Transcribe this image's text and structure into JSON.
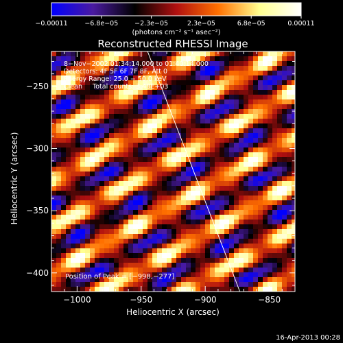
{
  "chart_data": {
    "type": "heatmap",
    "title": "Reconstructed RHESSI Image",
    "xlabel": "Heliocentric X (arcsec)",
    "ylabel": "Heliocentric Y (arcsec)",
    "xlim": [
      -1020,
      -830
    ],
    "ylim": [
      -415,
      -222
    ],
    "x_ticks": [
      -1000,
      -950,
      -900,
      -850
    ],
    "y_ticks": [
      -250,
      -300,
      -350,
      -400
    ],
    "x_tick_labels": [
      "−1000",
      "−950",
      "−900",
      "−850"
    ],
    "y_tick_labels": [
      "−250",
      "−300",
      "−350",
      "−400"
    ],
    "colorbar": {
      "min": -0.00011,
      "max": 0.00011,
      "tick_labels": [
        "−0.00011",
        "−6.8e−05",
        "−2.3e−05",
        "2.3e−05",
        "6.8e−05",
        "0.00011"
      ],
      "unit_label": "(photons cm⁻² s⁻¹ asec⁻²)",
      "colors": [
        "#0000ff",
        "#4a1aa0",
        "#000000",
        "#b01010",
        "#ff7000",
        "#ffff90",
        "#ffffff"
      ]
    },
    "annotations": [
      "8−Nov−2002 01:34:14.000 to 01:40:14.000",
      "Detectors: 4F 5F 6F 7F 8F, Att 0",
      "Energy Range: 25.0 − 50.0 keV",
      "Clean     Total counts: 3.48E+03"
    ],
    "peak_label": "Position of Peak = [−998,−277]",
    "peak": [
      -998,
      -277
    ],
    "limb_line": [
      [
        -945,
        -222
      ],
      [
        -873,
        -415
      ]
    ],
    "grid": false,
    "fringe_period_arcsec": 32,
    "fringe_angle_deg": 30
  },
  "timestamp": "16-Apr-2013 00:28"
}
